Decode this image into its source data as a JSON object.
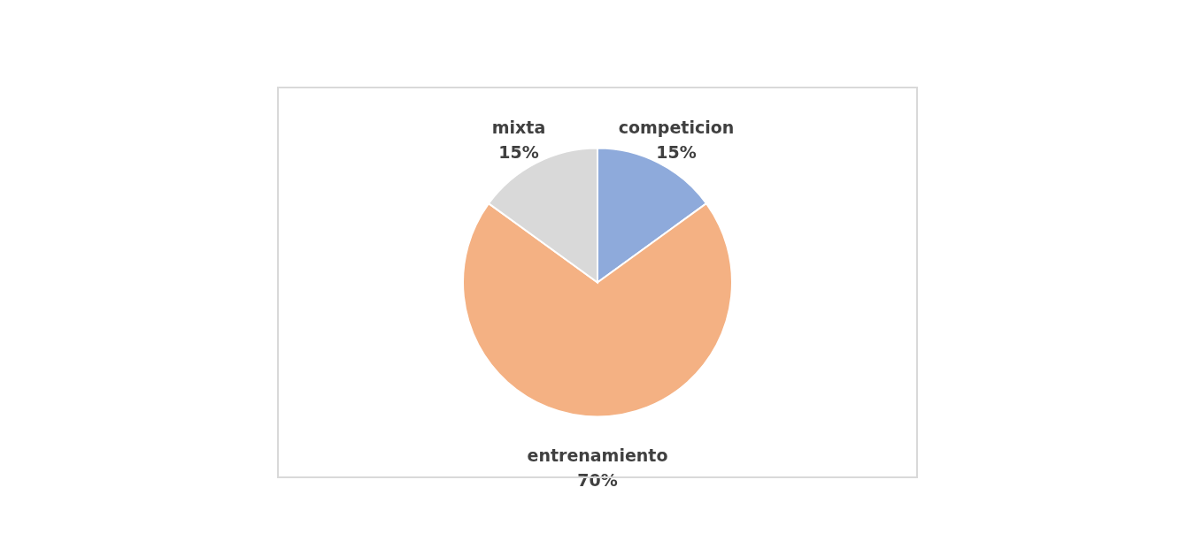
{
  "chart_data": {
    "type": "pie",
    "categories": [
      "competicion",
      "entrenamiento",
      "mixta"
    ],
    "values": [
      15,
      70,
      15
    ],
    "value_labels": [
      "15%",
      "70%",
      "15%"
    ],
    "colors": [
      "#8eaadb",
      "#f4b183",
      "#d9d9d9"
    ]
  }
}
